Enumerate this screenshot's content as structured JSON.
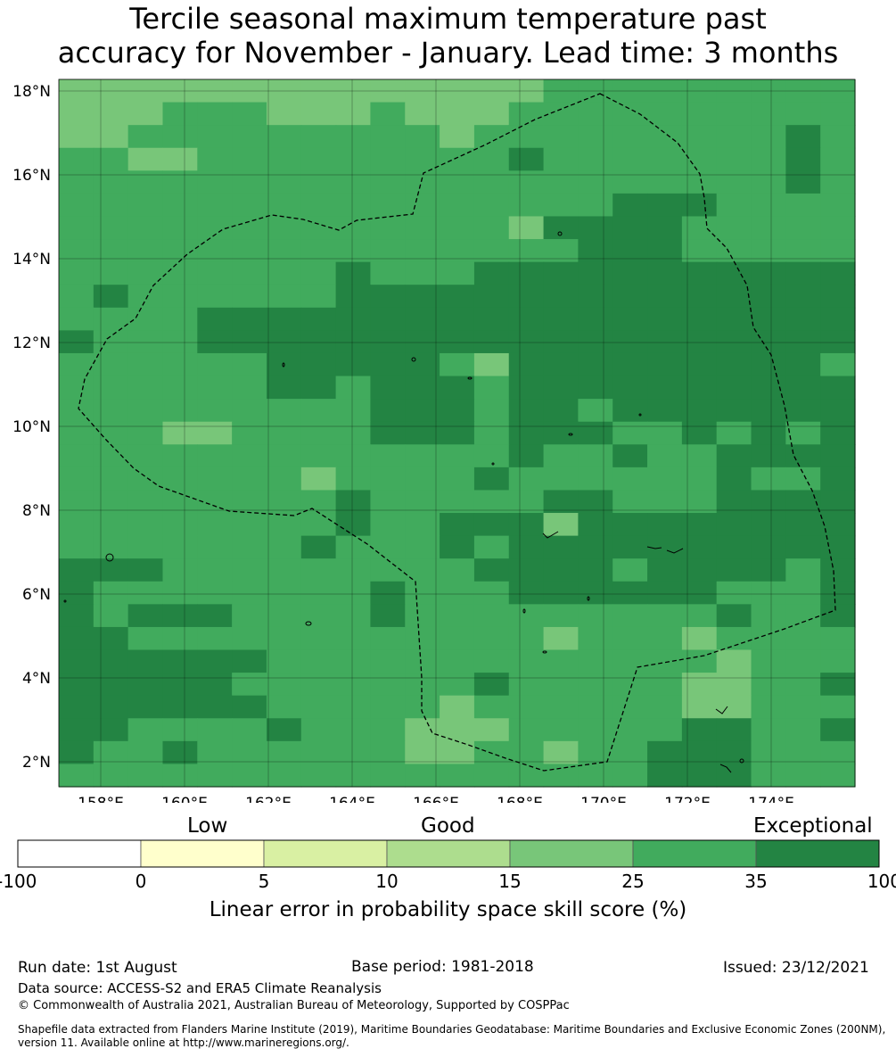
{
  "title": {
    "line1": "Tercile seasonal maximum temperature past",
    "line2": "accuracy for November - January. Lead time: 3 months"
  },
  "map": {
    "lat_labels": [
      "18°N",
      "16°N",
      "14°N",
      "12°N",
      "10°N",
      "8°N",
      "6°N",
      "4°N",
      "2°N"
    ],
    "lon_labels": [
      "158°E",
      "160°E",
      "162°E",
      "164°E",
      "166°E",
      "168°E",
      "170°E",
      "172°E",
      "174°E"
    ],
    "lon_range": [
      157,
      176
    ],
    "lat_range": [
      1.4,
      18.4
    ],
    "boundary_style": "dashed",
    "grid": "on",
    "legend_placement": "bottom"
  },
  "colorbar": {
    "categories": [
      "Low",
      "Good",
      "Exceptional"
    ],
    "ticks": [
      "-100",
      "0",
      "5",
      "10",
      "15",
      "25",
      "35",
      "100"
    ],
    "colors": [
      "#ffffff",
      "#ffffcc",
      "#d9f0a3",
      "#addd8e",
      "#78c679",
      "#41ab5d",
      "#238443"
    ],
    "label": "Linear error in probability space skill score (%)"
  },
  "footer": {
    "run_date": "Run date: 1st August",
    "base_period": "Base period: 1981-2018",
    "issued": "Issued: 23/12/2021",
    "data_source": "Data source: ACCESS-S2 and ERA5 Climate Reanalysis",
    "copyright": "© Commonwealth of Australia 2021, Australian Bureau of Meteorology, Supported by COSPPac",
    "shapefile": "Shapefile data extracted from Flanders Marine Institute (2019), Maritime Boundaries Geodatabase: Maritime Boundaries and Exclusive Economic Zones (200NM), version 11. Available online at http://www.marineregions.org/."
  }
}
